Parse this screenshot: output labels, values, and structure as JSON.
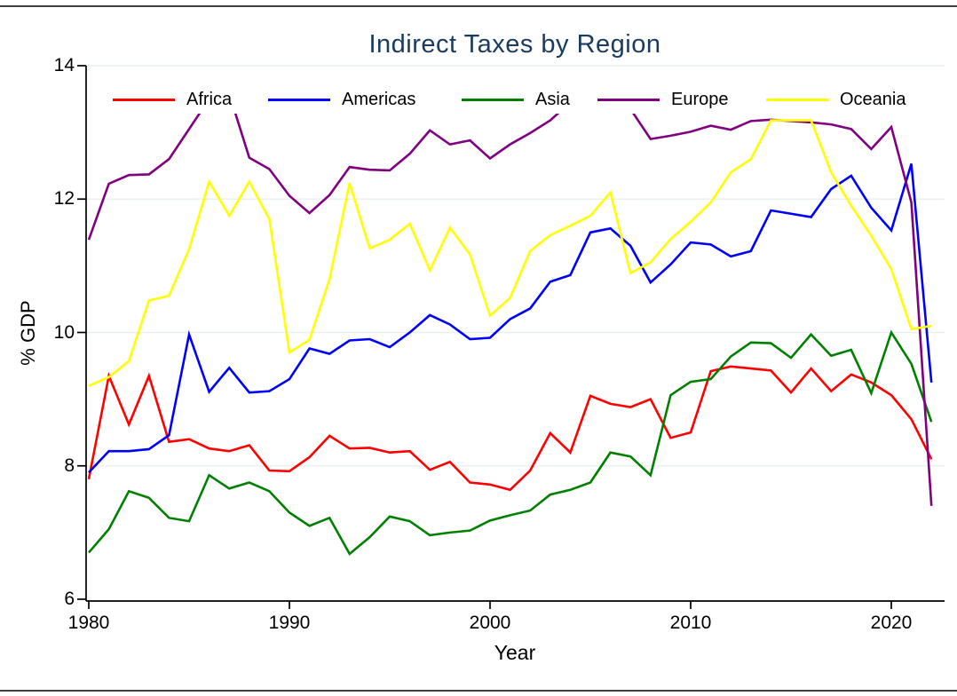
{
  "title": "Indirect Taxes by Region",
  "title_color": "#1a3c61",
  "axes": {
    "x_label": "Year",
    "y_label": "% GDP",
    "x_ticks": [
      1980,
      1990,
      2000,
      2010,
      2020
    ],
    "y_ticks": [
      6,
      8,
      10,
      12,
      14
    ],
    "y_gridlines": [
      8,
      10,
      12,
      14
    ],
    "x_range": [
      1980,
      2022
    ],
    "y_range": [
      6,
      14
    ],
    "axis_color": "#000000",
    "gridline_color": "#e9f1f3"
  },
  "legend": {
    "position": "top-inside",
    "items": [
      "Africa",
      "Americas",
      "Asia",
      "Europe",
      "Oceania"
    ]
  },
  "chart_data": {
    "type": "line",
    "title": "Indirect Taxes by Region",
    "xlabel": "Year",
    "ylabel": "% GDP",
    "xlim": [
      1980,
      2022
    ],
    "ylim": [
      6,
      14
    ],
    "grid": "horizontal",
    "legend_position": "top",
    "x": [
      1980,
      1981,
      1982,
      1983,
      1984,
      1985,
      1986,
      1987,
      1988,
      1989,
      1990,
      1991,
      1992,
      1993,
      1994,
      1995,
      1996,
      1997,
      1998,
      1999,
      2000,
      2001,
      2002,
      2003,
      2004,
      2005,
      2006,
      2007,
      2008,
      2009,
      2010,
      2011,
      2012,
      2013,
      2014,
      2015,
      2016,
      2017,
      2018,
      2019,
      2020,
      2021,
      2022
    ],
    "series": [
      {
        "name": "Africa",
        "color": "#ff0000",
        "values": [
          7.8,
          9.35,
          8.62,
          9.35,
          8.36,
          8.4,
          8.26,
          8.22,
          8.31,
          7.93,
          7.92,
          8.13,
          8.45,
          8.26,
          8.27,
          8.2,
          8.22,
          7.94,
          8.06,
          7.75,
          7.72,
          7.64,
          7.93,
          8.49,
          8.2,
          9.05,
          8.93,
          8.88,
          9.0,
          8.42,
          8.5,
          9.42,
          9.49,
          9.46,
          9.43,
          9.1,
          9.46,
          9.12,
          9.37,
          9.25,
          9.06,
          8.7,
          8.1
        ]
      },
      {
        "name": "Americas",
        "color": "#0000ff",
        "values": [
          7.9,
          8.22,
          8.22,
          8.25,
          8.46,
          9.97,
          9.11,
          9.47,
          9.1,
          9.12,
          9.3,
          9.76,
          9.68,
          9.88,
          9.9,
          9.78,
          10.0,
          10.26,
          10.12,
          9.9,
          9.92,
          10.2,
          10.36,
          10.76,
          10.86,
          11.5,
          11.56,
          11.3,
          10.75,
          11.02,
          11.35,
          11.32,
          11.14,
          11.22,
          11.83,
          11.78,
          11.73,
          12.15,
          12.35,
          11.87,
          11.53,
          12.53,
          9.25
        ]
      },
      {
        "name": "Asia",
        "color": "#008000",
        "values": [
          6.7,
          7.05,
          7.62,
          7.52,
          7.22,
          7.17,
          7.86,
          7.66,
          7.75,
          7.62,
          7.3,
          7.1,
          7.22,
          6.68,
          6.93,
          7.24,
          7.17,
          6.96,
          7.0,
          7.03,
          7.18,
          7.26,
          7.33,
          7.57,
          7.64,
          7.75,
          8.2,
          8.14,
          7.86,
          9.06,
          9.26,
          9.3,
          9.64,
          9.85,
          9.84,
          9.62,
          9.97,
          9.65,
          9.74,
          9.09,
          10.0,
          9.53,
          8.66
        ]
      },
      {
        "name": "Europe",
        "color": "#800080",
        "values": [
          11.39,
          12.23,
          12.36,
          12.37,
          12.6,
          13.05,
          13.5,
          13.58,
          12.62,
          12.45,
          12.05,
          11.79,
          12.06,
          12.48,
          12.44,
          12.43,
          12.68,
          13.03,
          12.82,
          12.88,
          12.61,
          12.82,
          12.99,
          13.18,
          13.45,
          13.5,
          13.48,
          13.35,
          12.9,
          12.95,
          13.01,
          13.1,
          13.04,
          13.17,
          13.19,
          13.17,
          13.15,
          13.12,
          13.05,
          12.75,
          13.08,
          11.95,
          7.4
        ]
      },
      {
        "name": "Oceania",
        "color": "#ffff00",
        "values": [
          9.2,
          9.33,
          9.57,
          10.48,
          10.55,
          11.25,
          12.26,
          11.75,
          12.26,
          11.7,
          9.7,
          9.89,
          10.8,
          12.24,
          11.26,
          11.39,
          11.63,
          10.93,
          11.57,
          11.17,
          10.25,
          10.52,
          11.22,
          11.46,
          11.6,
          11.75,
          12.1,
          10.89,
          11.05,
          11.4,
          11.66,
          11.95,
          12.4,
          12.6,
          13.18,
          13.18,
          13.18,
          12.4,
          11.9,
          11.45,
          10.95,
          10.05,
          10.1
        ]
      }
    ]
  }
}
